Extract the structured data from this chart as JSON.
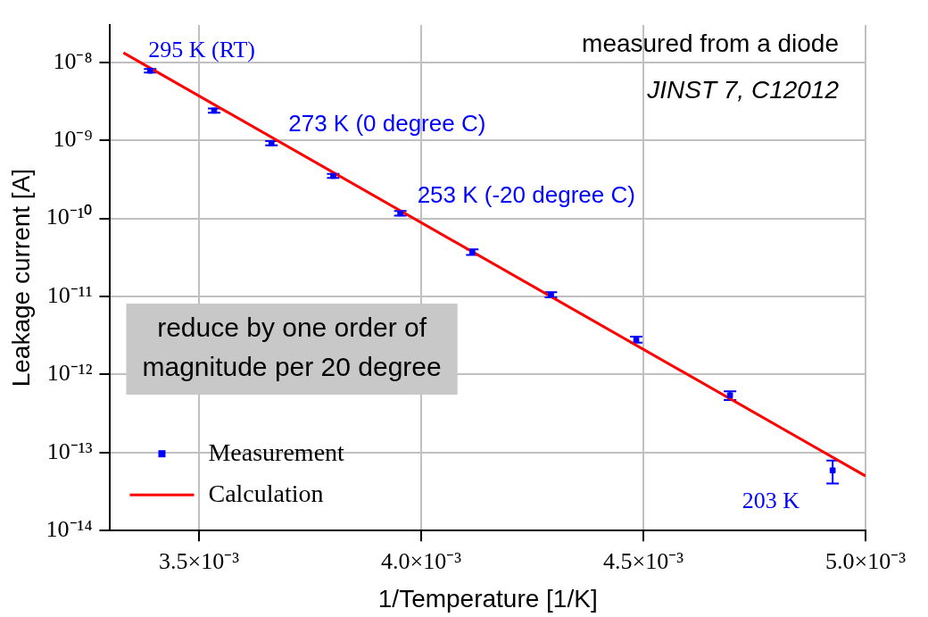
{
  "chart_data": {
    "type": "scatter",
    "xlabel": "1/Temperature [1/K]",
    "ylabel": "Leakage current [A]",
    "xlim": [
      0.0033,
      0.005
    ],
    "xticks": [
      {
        "value": 0.0035,
        "label": "3.5×10⁻³"
      },
      {
        "value": 0.004,
        "label": "4.0×10⁻³"
      },
      {
        "value": 0.0045,
        "label": "4.5×10⁻³"
      },
      {
        "value": 0.005,
        "label": "5.0×10⁻³"
      }
    ],
    "ylim": [
      1e-14,
      3e-08
    ],
    "yticks": [
      {
        "value": 1e-14,
        "label": "10⁻¹⁴"
      },
      {
        "value": 1e-13,
        "label": "10⁻¹³"
      },
      {
        "value": 1e-12,
        "label": "10⁻¹²"
      },
      {
        "value": 1e-11,
        "label": "10⁻¹¹"
      },
      {
        "value": 1e-10,
        "label": "10⁻¹⁰"
      },
      {
        "value": 1e-09,
        "label": "10⁻⁹"
      },
      {
        "value": 1e-08,
        "label": "10⁻⁸"
      }
    ],
    "log": "y",
    "grid": true,
    "legend": "bottom left",
    "series": [
      {
        "name": "Measurement",
        "type": "scatter",
        "marker": "square",
        "color": "#0000ff",
        "x": [
          0.00339,
          0.003534,
          0.003663,
          0.003802,
          0.003953,
          0.004115,
          0.004292,
          0.004484,
          0.004695,
          0.004926
        ],
        "values": [
          7.8e-09,
          2.4e-09,
          9.2e-10,
          3.5e-10,
          1.16e-10,
          3.7e-11,
          1.05e-11,
          2.8e-12,
          5.4e-13,
          5.9e-14
        ],
        "errors": [
          4e-10,
          1.5e-10,
          6e-11,
          2e-11,
          8e-12,
          3e-12,
          8e-13,
          2.5e-13,
          7e-14,
          [
            4e-14,
            7.9e-14
          ]
        ]
      },
      {
        "name": "Calculation",
        "type": "line",
        "marker": "none",
        "color": "#ff0000",
        "x": [
          0.00333,
          0.005
        ],
        "values": [
          1.32e-08,
          5e-14
        ]
      }
    ],
    "annotations": [
      "measured from a diode",
      "JINST 7, C12012",
      "reduce by one order of magnitude per 20 degree",
      {
        "text": "295 K (RT)",
        "x": 0.00339,
        "y": 7.8e-09
      },
      {
        "text": "273 K (0 degree C)",
        "x": 0.003663,
        "y": 9.2e-10
      },
      {
        "text": "253 K (-20 degree C)",
        "x": 0.003953,
        "y": 1.16e-10
      },
      {
        "text": "203 K",
        "x": 0.004926,
        "y": 5.9e-14
      }
    ]
  }
}
